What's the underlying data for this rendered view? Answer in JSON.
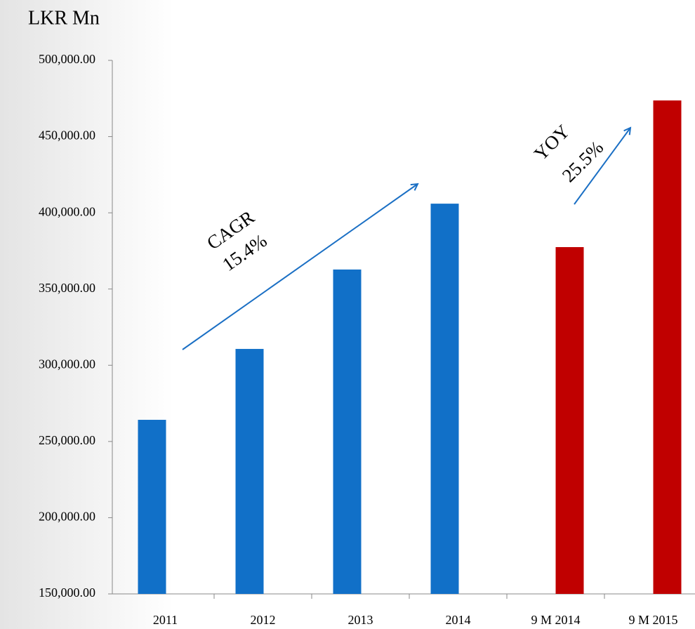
{
  "chart_data": {
    "type": "bar",
    "title": "LKR Mn",
    "categories": [
      "2011",
      "2012",
      "2013",
      "2014",
      "9 M 2014",
      "9 M 2015"
    ],
    "series": [
      {
        "color": "#1170c8",
        "values": [
          264200,
          310700,
          362800,
          406000,
          null,
          null
        ]
      },
      {
        "color": "#c00000",
        "values": [
          null,
          null,
          null,
          null,
          377500,
          473700
        ]
      }
    ],
    "ylim": [
      150000,
      500000
    ],
    "yticks": [
      {
        "value": 150000,
        "label": "150,000.00"
      },
      {
        "value": 200000,
        "label": "200,000.00"
      },
      {
        "value": 250000,
        "label": "250,000.00"
      },
      {
        "value": 300000,
        "label": "300,000.00"
      },
      {
        "value": 350000,
        "label": "350,000.00"
      },
      {
        "value": 400000,
        "label": "400,000.00"
      },
      {
        "value": 450000,
        "label": "450,000.00"
      },
      {
        "value": 500000,
        "label": "500,000.00"
      }
    ],
    "grid": false,
    "annotations": [
      "CAGR",
      "15.4%",
      "YOY",
      "25.5%"
    ]
  }
}
